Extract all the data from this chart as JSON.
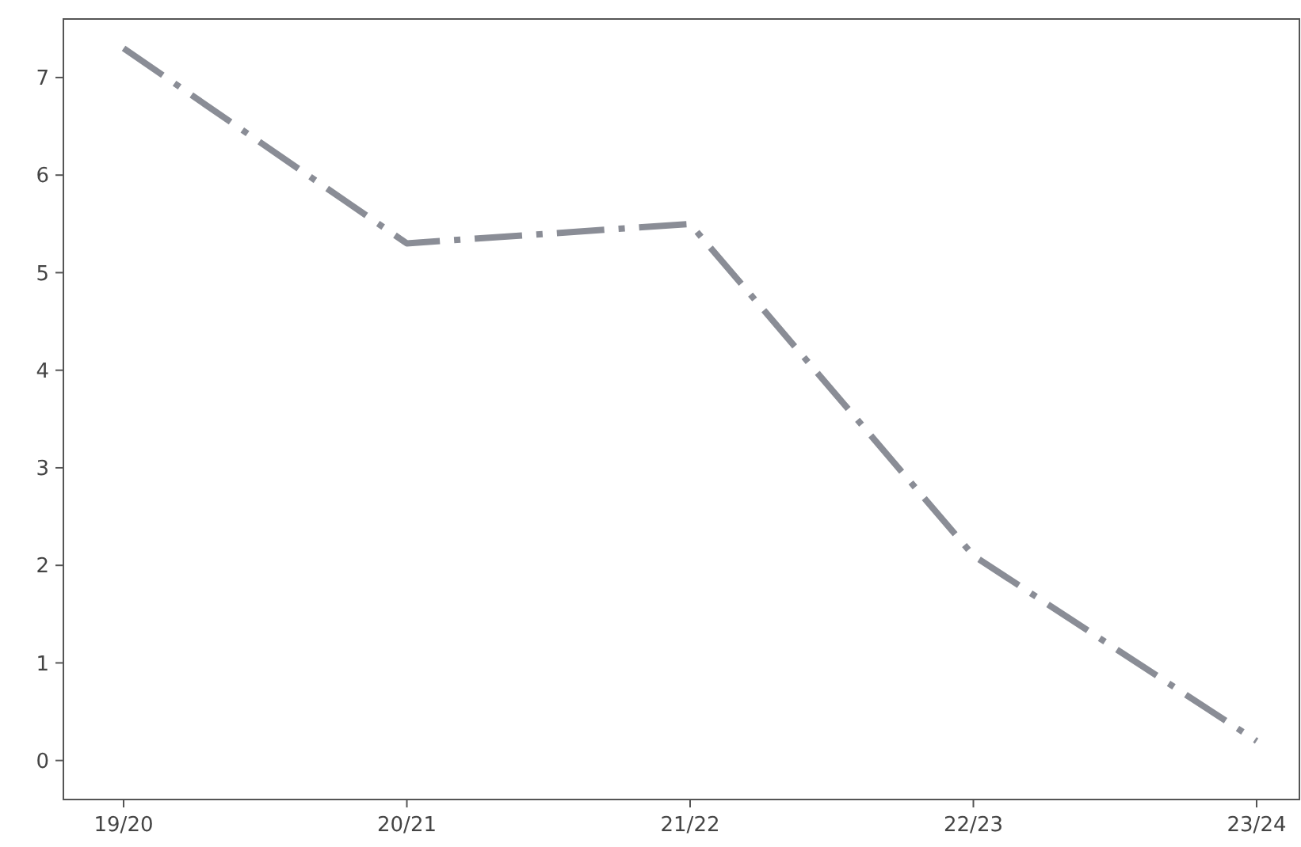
{
  "chart_data": {
    "type": "line",
    "categories": [
      "19/20",
      "20/21",
      "21/22",
      "22/23",
      "23/24"
    ],
    "series": [
      {
        "color": "#8a8d96",
        "values": [
          7.3,
          5.3,
          5.5,
          2.1,
          0.2
        ]
      }
    ],
    "ylim": [
      -0.4,
      7.6
    ],
    "yticks": [
      0,
      1,
      2,
      3,
      4,
      5,
      6,
      7
    ],
    "grid": false,
    "marker": "none",
    "line_style": "dashed"
  }
}
